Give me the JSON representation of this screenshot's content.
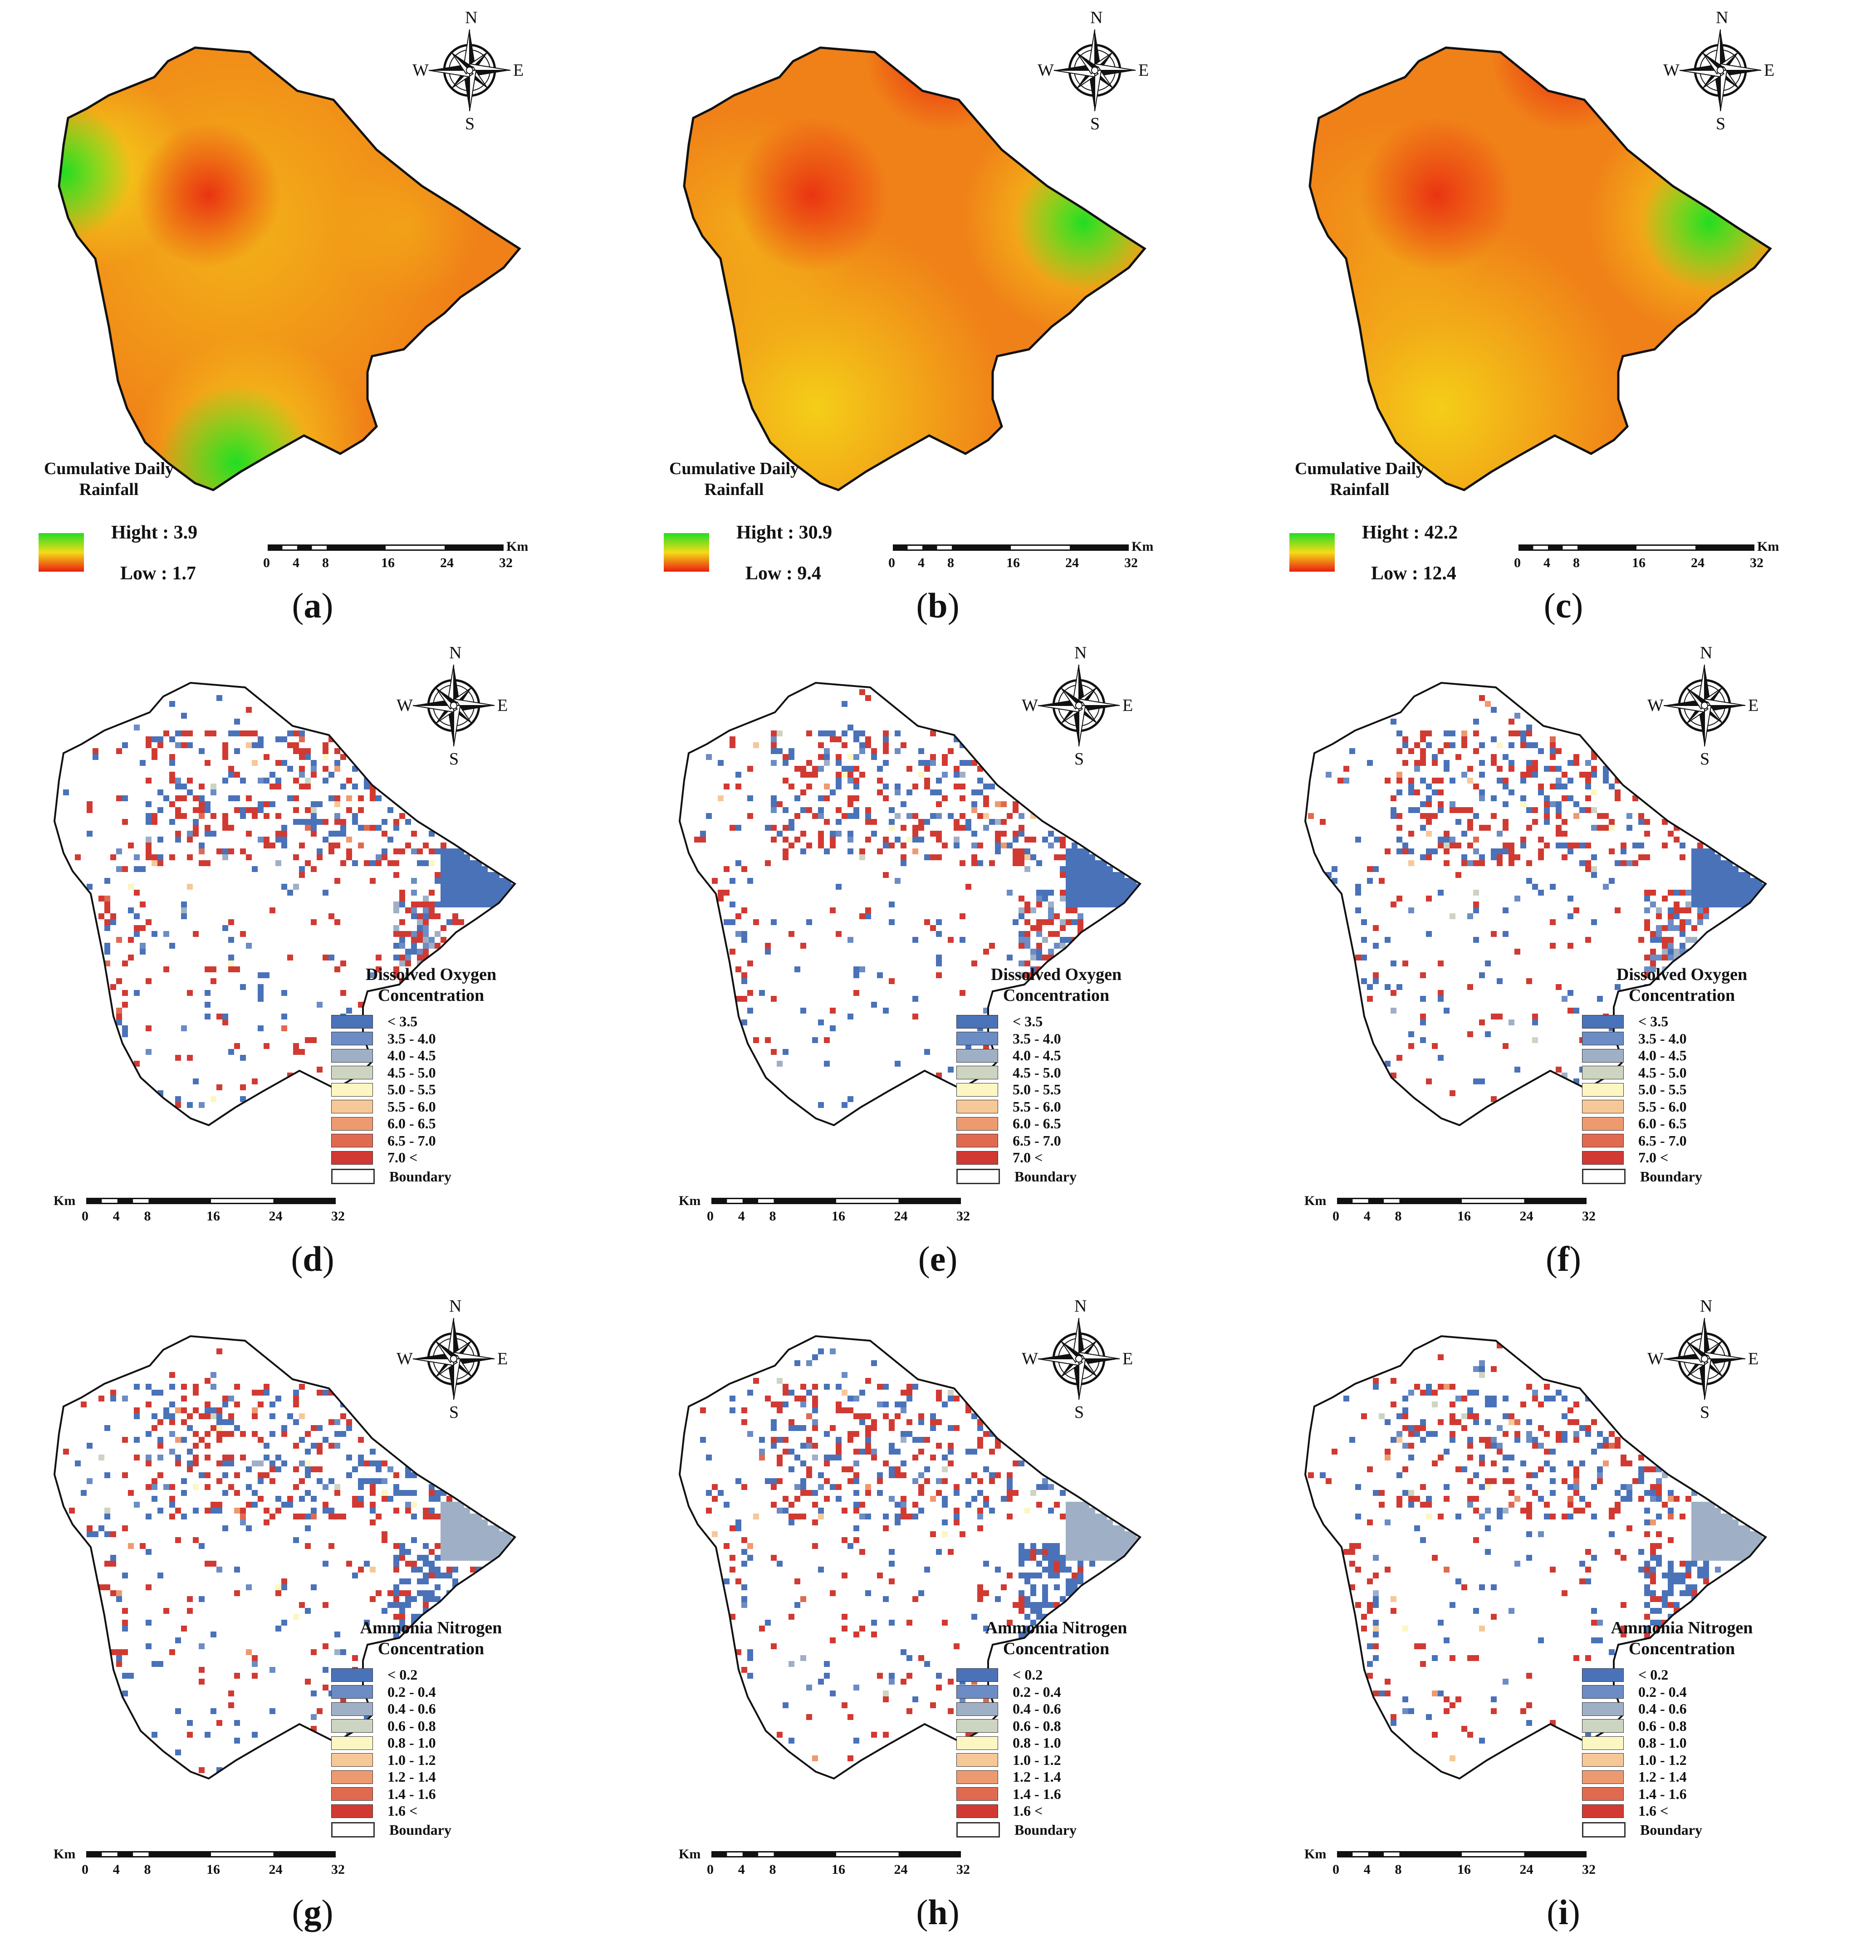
{
  "scale_bar": {
    "unit": "Km",
    "ticks": [
      "0",
      "4",
      "8",
      "16",
      "24",
      "32"
    ]
  },
  "compass": {
    "n": "N",
    "e": "E",
    "s": "S",
    "w": "W",
    "e_rainfall": "E"
  },
  "rainfall_panels": [
    {
      "caption": "a",
      "title_line1": "Cumulative Daily",
      "title_line2": "Rainfall",
      "high_label": "Hight : 3.9",
      "low_label": "Low : 1.7",
      "pattern": "a"
    },
    {
      "caption": "b",
      "title_line1": "Cumulative Daily",
      "title_line2": "Rainfall",
      "high_label": "Hight : 30.9",
      "low_label": "Low : 9.4",
      "pattern": "b"
    },
    {
      "caption": "c",
      "title_line1": "Cumulative Daily",
      "title_line2": "Rainfall",
      "high_label": "Hight : 42.2",
      "low_label": "Low : 12.4",
      "pattern": "c"
    }
  ],
  "do_legend": {
    "title_line1": "Dissolved Oxygen",
    "title_line2": "Concentration",
    "classes": [
      {
        "label": "<    3.5",
        "color": "#4a72b8"
      },
      {
        "label": "3.5  -  4.0",
        "color": "#6b8cc4"
      },
      {
        "label": "4.0  -  4.5",
        "color": "#9fb0c6"
      },
      {
        "label": "4.5  -  5.0",
        "color": "#cdd4c2"
      },
      {
        "label": "5.0  -  5.5",
        "color": "#fcf6c2"
      },
      {
        "label": "5.5  -  6.0",
        "color": "#f6c898"
      },
      {
        "label": "6.0  -  6.5",
        "color": "#ee9a70"
      },
      {
        "label": "6.5  -  7.0",
        "color": "#e06a50"
      },
      {
        "label": "7.0    <",
        "color": "#d13a32"
      }
    ],
    "boundary_label": "Boundary"
  },
  "an_legend": {
    "title_line1": "Ammonia Nitrogen",
    "title_line2": "Concentration",
    "classes": [
      {
        "label": "<    0.2",
        "color": "#4a72b8"
      },
      {
        "label": "0.2  -  0.4",
        "color": "#6b8cc4"
      },
      {
        "label": "0.4  -  0.6",
        "color": "#9fb0c6"
      },
      {
        "label": "0.6  -  0.8",
        "color": "#cdd4c2"
      },
      {
        "label": "0.8  -  1.0",
        "color": "#fcf6c2"
      },
      {
        "label": "1.0  -  1.2",
        "color": "#f6c898"
      },
      {
        "label": "1.2  -  1.4",
        "color": "#ee9a70"
      },
      {
        "label": "1.4  -  1.6",
        "color": "#e06a50"
      },
      {
        "label": "1.6    <",
        "color": "#d13a32"
      }
    ],
    "boundary_label": "Boundary"
  },
  "do_panels": [
    {
      "caption": "d",
      "seed": 11
    },
    {
      "caption": "e",
      "seed": 23
    },
    {
      "caption": "f",
      "seed": 37
    }
  ],
  "an_panels": [
    {
      "caption": "g",
      "seed": 51
    },
    {
      "caption": "h",
      "seed": 67
    },
    {
      "caption": "i",
      "seed": 79
    }
  ],
  "colors": {
    "boundary": "#111111",
    "green": "#22dd22",
    "yellow": "#f5dc18",
    "orange": "#f08018",
    "red": "#e81e10"
  }
}
